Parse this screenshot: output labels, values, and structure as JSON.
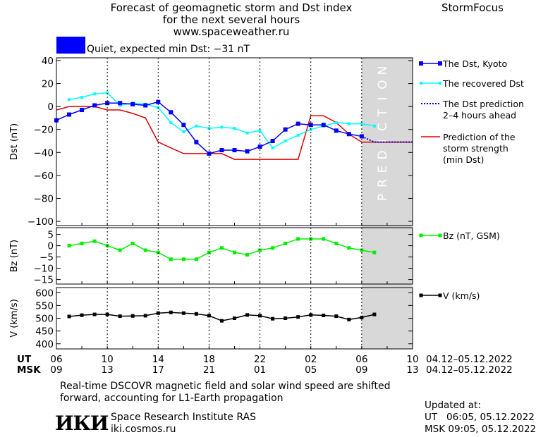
{
  "header": {
    "title_line1": "Forecast of geomagnetic storm and Dst index",
    "title_line2": "for the next several hours",
    "url": "www.spaceweather.ru",
    "brand": "StormFocus"
  },
  "status": {
    "text": "Quiet, expected min Dst: −31 nT",
    "swatch_color": "#0000ff"
  },
  "colors": {
    "dst_kyoto": "#0000ff",
    "recovered": "#00ffff",
    "prediction": "#0000cc",
    "storm": "#dd0000",
    "bz": "#00ee00",
    "v": "#000000",
    "prediction_band": "#d8d8d8"
  },
  "prediction_band_label": "PREDICTION",
  "time_axis": {
    "ut_label": "UT",
    "msk_label": "MSK",
    "ut_ticks": [
      "06",
      "10",
      "14",
      "18",
      "22",
      "02",
      "06",
      "10"
    ],
    "msk_ticks": [
      "09",
      "13",
      "17",
      "21",
      "01",
      "05",
      "09",
      "13"
    ],
    "date_range": "04.12–05.12.2022"
  },
  "chart_data": [
    {
      "type": "line",
      "ylabel": "Dst (nT)",
      "ylim": [
        -100,
        40
      ],
      "yticks": [
        40,
        20,
        0,
        -20,
        -40,
        -60,
        -80,
        -100
      ],
      "prediction_start_hour": 30,
      "series": [
        {
          "name": "The Dst, Kyoto",
          "marker": "square",
          "x": [
            6,
            7,
            8,
            9,
            10,
            11,
            12,
            13,
            14,
            15,
            16,
            17,
            18,
            19,
            20,
            21,
            22,
            23,
            24,
            25,
            26,
            27,
            28,
            29,
            30
          ],
          "values": [
            -12,
            -7,
            -3,
            1,
            3,
            3,
            2,
            1,
            4,
            -5,
            -16,
            -31,
            -41,
            -38,
            -38,
            -39,
            -35,
            -30,
            -20,
            -15,
            -16,
            -16,
            -21,
            -24,
            -26
          ]
        },
        {
          "name": "The recovered Dst",
          "marker": "square-small",
          "x": [
            7,
            8,
            9,
            10,
            11,
            12,
            13,
            14,
            15,
            16,
            17,
            18,
            19,
            20,
            21,
            22,
            23,
            24,
            25,
            26,
            27,
            28,
            29,
            30,
            31
          ],
          "values": [
            6,
            8,
            11,
            12,
            1,
            3,
            2,
            -1,
            -14,
            -22,
            -17,
            -19,
            -18,
            -19,
            -23,
            -21,
            -36,
            -30,
            -25,
            -20,
            -17,
            -14,
            -15,
            -15,
            -17
          ]
        },
        {
          "name": "The Dst prediction\n2–4 hours ahead",
          "style": "dotted",
          "x": [
            30,
            31,
            32,
            33,
            34
          ],
          "values": [
            -26,
            -31,
            -31,
            -31,
            -31
          ]
        },
        {
          "name": "Prediction of the\nstorm strength\n(min Dst)",
          "style": "step",
          "x": [
            6,
            7,
            9,
            10,
            11,
            12,
            13,
            14,
            15,
            16,
            17,
            18,
            19,
            20,
            21,
            22,
            23,
            24,
            25,
            26,
            27,
            28,
            29,
            30,
            31,
            32,
            33,
            34
          ],
          "values": [
            -3,
            0,
            0,
            -3,
            -3,
            -6,
            -10,
            -31,
            -36,
            -41,
            -41,
            -41,
            -41,
            -46,
            -46,
            -46,
            -46,
            -46,
            -46,
            -8,
            -8,
            -14,
            -24,
            -31,
            -31,
            -31,
            -31,
            -31
          ]
        }
      ]
    },
    {
      "type": "line",
      "ylabel": "Bz (nT)",
      "ylim": [
        -17,
        8
      ],
      "yticks": [
        5,
        0,
        -5,
        -10,
        -15
      ],
      "series": [
        {
          "name": "Bz (nT, GSM)",
          "x": [
            7,
            8,
            9,
            10,
            11,
            12,
            13,
            14,
            15,
            16,
            17,
            18,
            19,
            20,
            21,
            22,
            23,
            24,
            25,
            26,
            27,
            28,
            29,
            30,
            31
          ],
          "values": [
            0,
            1,
            2,
            0,
            -2,
            1,
            -2,
            -3,
            -6,
            -6,
            -6,
            -3,
            -1,
            -3,
            -4,
            -2,
            -1,
            1,
            3,
            3,
            3,
            1,
            -1,
            -2,
            -3
          ]
        }
      ]
    },
    {
      "type": "line",
      "ylabel": "V (km/s)",
      "ylim": [
        380,
        620
      ],
      "yticks": [
        600,
        550,
        500,
        450,
        400
      ],
      "series": [
        {
          "name": "V (km/s)",
          "x": [
            7,
            8,
            9,
            10,
            11,
            12,
            13,
            14,
            15,
            16,
            17,
            18,
            19,
            20,
            21,
            22,
            23,
            24,
            25,
            26,
            27,
            28,
            29,
            30,
            31
          ],
          "values": [
            507,
            512,
            515,
            515,
            508,
            509,
            510,
            520,
            523,
            520,
            517,
            510,
            490,
            500,
            513,
            510,
            498,
            500,
            505,
            513,
            511,
            508,
            495,
            503,
            515
          ]
        }
      ]
    }
  ],
  "footer": {
    "note_line1": "Real-time DSCOVR magnetic field and solar wind speed are shifted",
    "note_line2": "forward, accounting for L1-Earth propagation",
    "logo": "ИКИ",
    "institute": "Space Research Institute RAS",
    "site": "iki.cosmos.ru",
    "updated_label": "Updated at:",
    "updated_ut": "UT   06:05, 05.12.2022",
    "updated_msk": "MSK 09:05, 05.12.2022"
  }
}
